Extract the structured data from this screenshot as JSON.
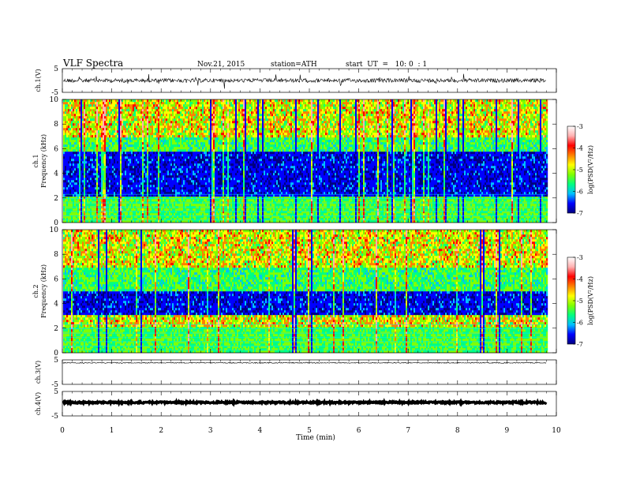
{
  "header": {
    "title": "VLF Spectra",
    "date": "Nov.21, 2015",
    "station": "station=ATH",
    "start": "start  UT  =   10: 0  : 1"
  },
  "chart_data": {
    "type": "heatmap",
    "xlabel": "Time (min)",
    "xlim": [
      0,
      10
    ],
    "xticks": [
      "0",
      "1",
      "2",
      "3",
      "4",
      "5",
      "6",
      "7",
      "8",
      "9",
      "10"
    ],
    "recording_end_min": 9.8,
    "waveforms": [
      {
        "name": "ch.1(V)",
        "ylim": [
          -5,
          5
        ],
        "yticks": [
          "5",
          "-5"
        ],
        "level": 0.0,
        "noise": "high"
      },
      {
        "name": "ch.3(V)",
        "ylim": [
          -5,
          5
        ],
        "yticks": [
          "5",
          "-5"
        ],
        "level": 3.8,
        "noise": "low"
      },
      {
        "name": "ch.4(V)",
        "ylim": [
          -5,
          5
        ],
        "yticks": [
          "5",
          "-5"
        ],
        "level": 0.5,
        "noise": "thick"
      }
    ],
    "spectrograms": [
      {
        "channel": "ch.1",
        "ylabel": "Frequency (kHz)",
        "ylim": [
          0,
          10
        ],
        "yticks": [
          "0",
          "2",
          "4",
          "6",
          "8",
          "10"
        ],
        "quiet_band_khz": [
          2.2,
          5.8
        ]
      },
      {
        "channel": "ch.2",
        "ylabel": "Frequency (kHz)",
        "ylim": [
          0,
          10
        ],
        "yticks": [
          "0",
          "2",
          "4",
          "6",
          "8",
          "10"
        ],
        "quiet_band_khz": [
          3.0,
          5.0
        ]
      }
    ],
    "colorbar": {
      "label": "log(PSD(V²/Hz)",
      "range": [
        -7,
        -3
      ],
      "ticks": [
        "-3",
        "-4",
        "-5",
        "-6",
        "-7"
      ],
      "colors": [
        "#000080",
        "#0000ff",
        "#00bfff",
        "#00ff80",
        "#7fff00",
        "#ffff00",
        "#ff8000",
        "#ff0000",
        "#ffb0b0",
        "#ffffff"
      ]
    }
  }
}
